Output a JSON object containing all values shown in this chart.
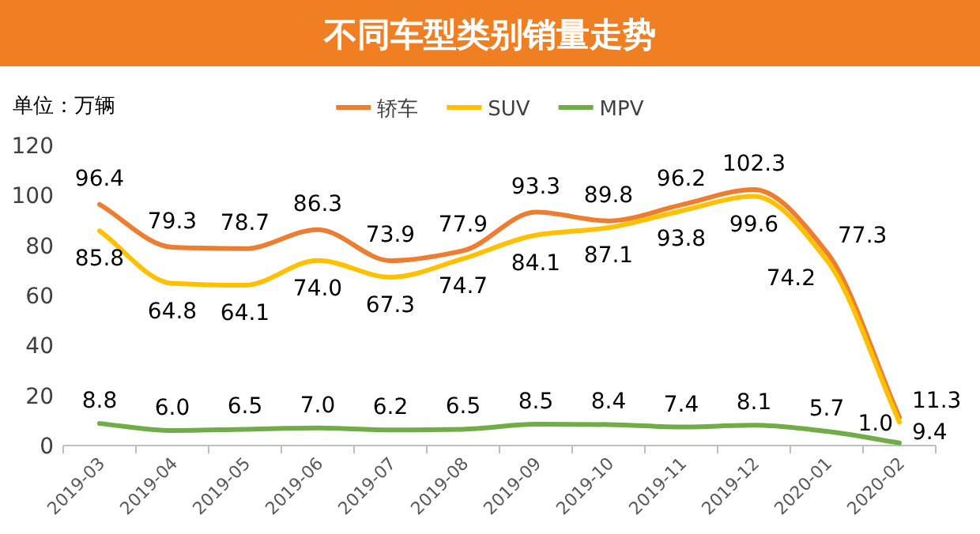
{
  "chart_data": {
    "type": "line",
    "title": "不同车型类别销量走势",
    "annotations": [
      "单位：万辆"
    ],
    "categories": [
      "2019-03",
      "2019-04",
      "2019-05",
      "2019-06",
      "2019-07",
      "2019-08",
      "2019-09",
      "2019-10",
      "2019-11",
      "2019-12",
      "2020-01",
      "2020-02"
    ],
    "series": [
      {
        "name": "轿车",
        "color": "#ed7d31",
        "values": [
          96.4,
          79.3,
          78.7,
          86.3,
          73.9,
          77.9,
          93.3,
          89.8,
          96.2,
          102.3,
          77.3,
          11.3
        ],
        "value_labels": [
          "96.4",
          "79.3",
          "78.7",
          "86.3",
          "73.9",
          "77.9",
          "93.3",
          "89.8",
          "96.2",
          "102.3",
          "77.3",
          "11.3"
        ]
      },
      {
        "name": "SUV",
        "color": "#ffc000",
        "values": [
          85.8,
          64.8,
          64.1,
          74.0,
          67.3,
          74.7,
          84.1,
          87.1,
          93.8,
          99.6,
          74.2,
          9.4
        ],
        "value_labels": [
          "85.8",
          "64.8",
          "64.1",
          "74.0",
          "67.3",
          "74.7",
          "84.1",
          "87.1",
          "93.8",
          "99.6",
          "74.2",
          "9.4"
        ]
      },
      {
        "name": "MPV",
        "color": "#70ad47",
        "values": [
          8.8,
          6.0,
          6.5,
          7.0,
          6.2,
          6.5,
          8.5,
          8.4,
          7.4,
          8.1,
          5.7,
          1.0
        ],
        "value_labels": [
          "8.8",
          "6.0",
          "6.5",
          "7.0",
          "6.2",
          "6.5",
          "8.5",
          "8.4",
          "7.4",
          "8.1",
          "5.7",
          "1.0"
        ]
      }
    ],
    "ylim": [
      0,
      120
    ],
    "yticks": [
      0,
      20,
      40,
      60,
      80,
      100,
      120
    ],
    "legend": "top",
    "grid": false
  }
}
